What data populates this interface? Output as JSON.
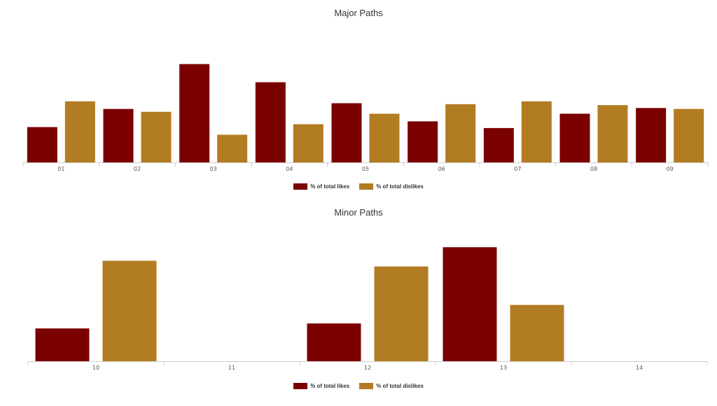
{
  "colors": {
    "likes": "#7B0000",
    "dislikes": "#B27C22",
    "axis": "#cccccc"
  },
  "chart_data": [
    {
      "type": "bar",
      "title": "Major Paths",
      "categories": [
        "01",
        "02",
        "03",
        "04",
        "05",
        "06",
        "07",
        "08",
        "09"
      ],
      "series": [
        {
          "name": "% of total likes",
          "values": [
            37,
            56,
            103,
            84,
            62,
            43,
            36,
            51,
            57
          ]
        },
        {
          "name": "% of total dislikes",
          "values": [
            64,
            53,
            29,
            40,
            51,
            61,
            64,
            60,
            56
          ]
        }
      ],
      "ylim": [
        0,
        110
      ],
      "legend": "bottom-center",
      "grid": false
    },
    {
      "type": "bar",
      "title": "Minor Paths",
      "categories": [
        "10",
        "11",
        "12",
        "13",
        "14"
      ],
      "series": [
        {
          "name": "% of total likes",
          "values": [
            46,
            0,
            53,
            160,
            0
          ]
        },
        {
          "name": "% of total dislikes",
          "values": [
            141,
            0,
            133,
            79,
            0
          ]
        }
      ],
      "ylim": [
        0,
        170
      ],
      "legend": "bottom-center",
      "grid": false
    }
  ]
}
